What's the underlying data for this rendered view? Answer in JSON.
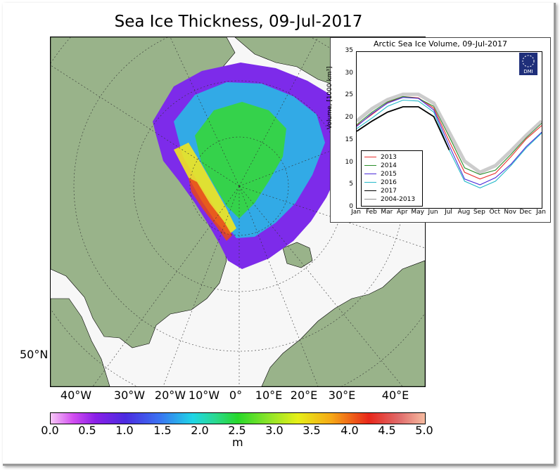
{
  "map": {
    "title": "Sea Ice Thickness, 09-Jul-2017",
    "lat_label": "50°N",
    "lon_labels": [
      "40°W",
      "30°W",
      "20°W",
      "10°W",
      "0°",
      "10°E",
      "20°E",
      "30°E",
      "40°E"
    ],
    "colorbar": {
      "ticks": [
        "0.0",
        "0.5",
        "1.0",
        "1.5",
        "2.0",
        "2.5",
        "3.0",
        "3.5",
        "4.0",
        "4.5",
        "5.0"
      ],
      "unit": "m"
    },
    "colors": {
      "land": "#99b38a",
      "ocean": "#f7f7f7",
      "border": "#000000"
    }
  },
  "inset": {
    "title": "Arctic Sea Ice Volume, 09-Jul-2017",
    "logo_text": "DMI",
    "chart_data": {
      "type": "line",
      "title": "Arctic Sea Ice Volume, 09-Jul-2017",
      "ylabel": "Volume, [1000 km³]",
      "ylim": [
        0,
        35
      ],
      "yticks": [
        "0",
        "5",
        "10",
        "15",
        "20",
        "25",
        "30",
        "35"
      ],
      "xticks": [
        "Jan",
        "Feb",
        "Mar",
        "Apr",
        "May",
        "Jun",
        "Jul",
        "Aug",
        "Sep",
        "Oct",
        "Nov",
        "Dec",
        "Jan"
      ],
      "x": [
        0,
        1,
        2,
        3,
        4,
        5,
        6,
        7,
        8,
        9,
        10,
        11,
        12
      ],
      "legend_placement": "lower-left",
      "series": [
        {
          "name": "2013",
          "color": "#e8302e",
          "values": [
            18.5,
            21.0,
            23.6,
            25.0,
            24.7,
            22.4,
            15.0,
            8.0,
            6.5,
            7.8,
            11.5,
            15.5,
            18.5
          ]
        },
        {
          "name": "2014",
          "color": "#2a8f2a",
          "values": [
            18.7,
            21.5,
            23.8,
            25.0,
            24.6,
            22.8,
            16.0,
            9.0,
            7.5,
            8.5,
            12.0,
            15.8,
            19.0
          ]
        },
        {
          "name": "2015",
          "color": "#4a2bd9",
          "values": [
            18.3,
            21.2,
            23.5,
            24.8,
            24.6,
            22.0,
            14.0,
            6.5,
            5.2,
            6.8,
            9.8,
            13.8,
            17.0
          ]
        },
        {
          "name": "2016",
          "color": "#25b8c9",
          "values": [
            17.8,
            20.2,
            22.8,
            24.2,
            24.0,
            21.5,
            13.0,
            6.0,
            4.5,
            6.0,
            9.5,
            13.5,
            16.8
          ]
        },
        {
          "name": "2017",
          "color": "#000000",
          "values": [
            17.2,
            19.5,
            21.5,
            22.7,
            22.7,
            20.5,
            13.0,
            null,
            null,
            null,
            null,
            null,
            null
          ]
        },
        {
          "name": "2004-2013",
          "color": "#8f8f8f",
          "values": [
            19.5,
            22.3,
            24.3,
            25.5,
            25.5,
            23.5,
            17.0,
            10.5,
            8.0,
            9.5,
            12.8,
            16.3,
            19.5
          ]
        }
      ]
    }
  }
}
